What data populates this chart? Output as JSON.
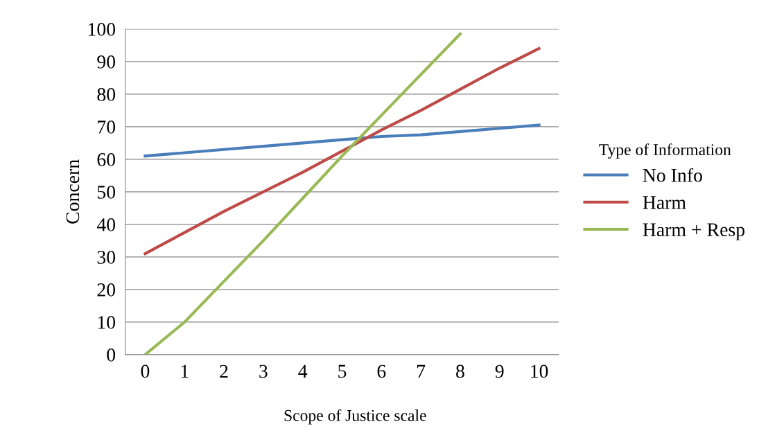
{
  "chart_data": {
    "type": "line",
    "xlabel": "Scope of Justice scale",
    "ylabel": "Concern",
    "legend_title": "Type of Information",
    "categories": [
      "0",
      "1",
      "2",
      "3",
      "4",
      "5",
      "6",
      "7",
      "8",
      "9",
      "10"
    ],
    "series": [
      {
        "name": "No Info",
        "color": "#4a7ebb",
        "values": [
          61,
          62,
          63,
          64,
          65,
          66,
          67,
          67.5,
          68.5,
          69.5,
          70.5
        ]
      },
      {
        "name": "Harm",
        "color": "#be4b48",
        "values": [
          31,
          37.5,
          44,
          50,
          56,
          62.5,
          69,
          75,
          81.5,
          88,
          94
        ]
      },
      {
        "name": "Harm + Resp",
        "color": "#98b954",
        "values": [
          0,
          10,
          22.5,
          35,
          48,
          61,
          73.5,
          86,
          98.5,
          null,
          null
        ]
      }
    ],
    "ylim": [
      0,
      100
    ],
    "yticks": [
      0,
      10,
      20,
      30,
      40,
      50,
      60,
      70,
      80,
      90,
      100
    ],
    "grid": "y",
    "legend": "right",
    "marker": "none",
    "line_style": "solid"
  }
}
